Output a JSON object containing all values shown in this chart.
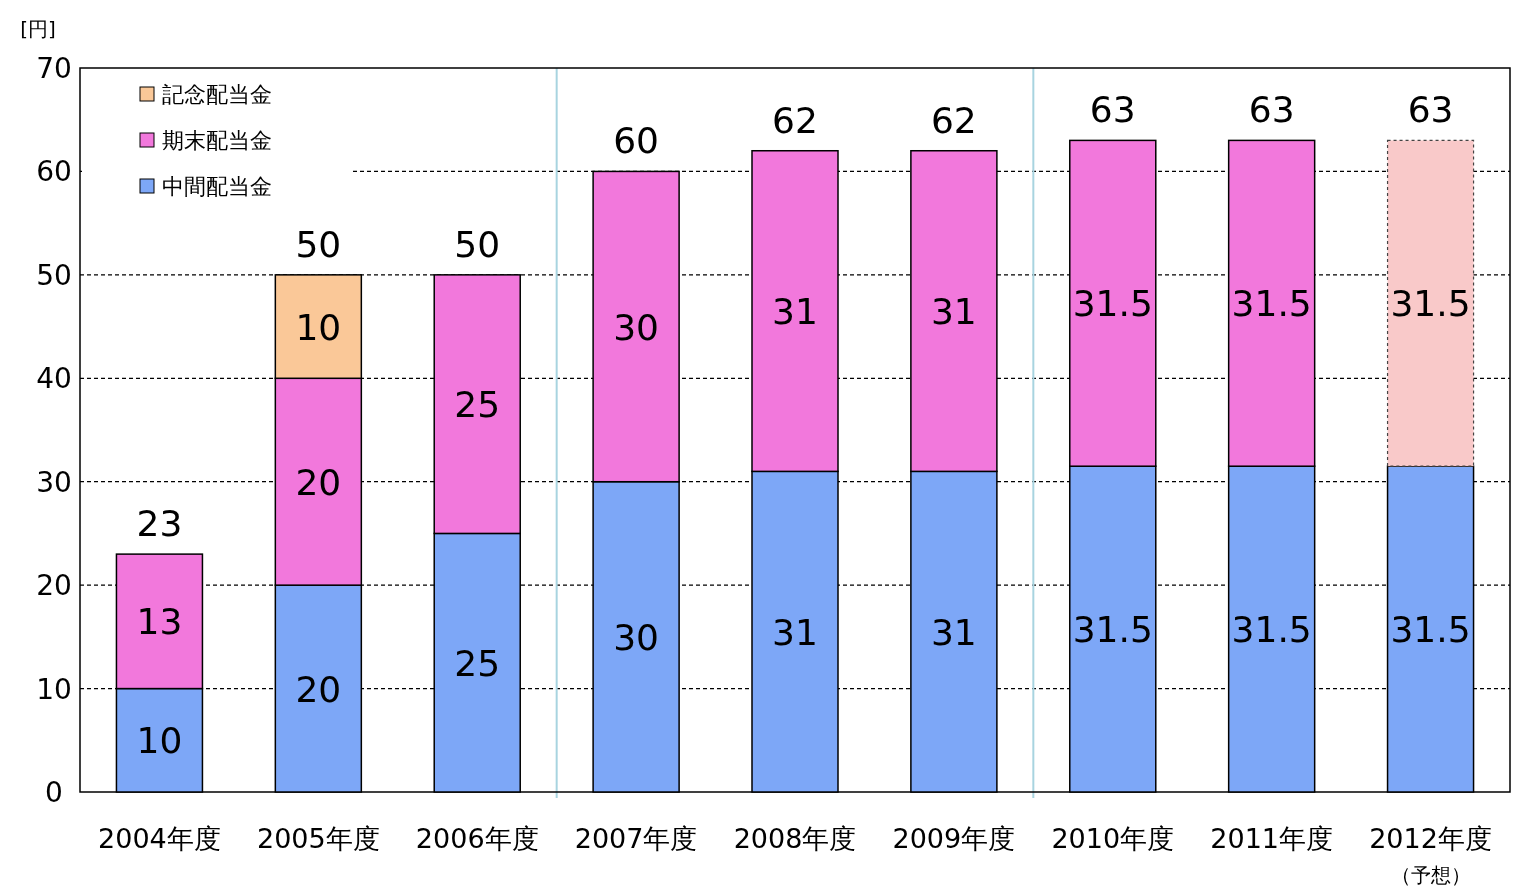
{
  "chart_data": {
    "type": "bar",
    "ylabel": "[円]",
    "categories": [
      "2004年度",
      "2005年度",
      "2006年度",
      "2007年度",
      "2008年度",
      "2009年度",
      "2010年度",
      "2011年度",
      "2012年度"
    ],
    "annotations": [
      "（予想）"
    ],
    "stacked": true,
    "data_labels": true,
    "legend": "top left",
    "grid": "y",
    "ylim": [
      0,
      70
    ],
    "yticks": [
      0,
      10,
      20,
      30,
      40,
      50,
      60,
      70
    ],
    "series": [
      {
        "name": "中間配当金",
        "color": "#7da7f7",
        "values": [
          10,
          20,
          25,
          30,
          31,
          31,
          31.5,
          31.5,
          31.5
        ]
      },
      {
        "name": "期末配当金",
        "color": "#f278dc",
        "colors": [
          "#f278dc",
          "#f278dc",
          "#f278dc",
          "#f278dc",
          "#f278dc",
          "#f278dc",
          "#f278dc",
          "#f278dc",
          "#f9c9c9"
        ],
        "values": [
          13,
          20,
          25,
          30,
          31,
          31,
          31.5,
          31.5,
          31.5
        ]
      },
      {
        "name": "記念配当金",
        "color": "#fac898",
        "values": [
          null,
          10,
          null,
          null,
          null,
          null,
          null,
          null,
          null
        ]
      }
    ],
    "totals": [
      "23",
      "50",
      "50",
      "60",
      "62",
      "62",
      "63",
      "63",
      "63"
    ]
  }
}
